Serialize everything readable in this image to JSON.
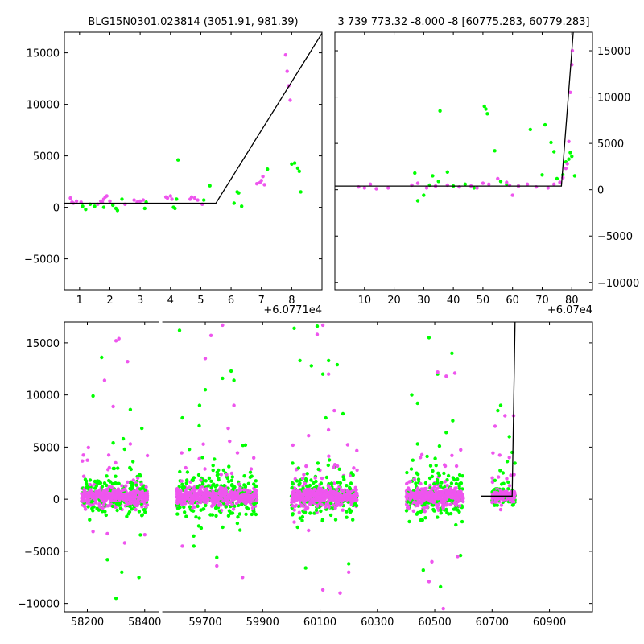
{
  "chart_data": [
    {
      "type": "scatter",
      "title": "BLG15N0301.023814 (3051.91, 981.39)",
      "xlabel": "",
      "ylabel": "",
      "xlim": [
        0.5,
        9.0
      ],
      "ylim": [
        -8000,
        17000
      ],
      "x_offset_label": "+6.0771e4",
      "xticks": [
        1,
        2,
        3,
        4,
        5,
        6,
        7,
        8
      ],
      "yticks": [
        -5000,
        0,
        5000,
        10000,
        15000
      ],
      "ytick_labels": [
        "−5000",
        "0",
        "5000",
        "10000",
        "15000"
      ],
      "yaxis_side": "left",
      "grid": false,
      "series": [
        {
          "color": "#00ff00",
          "points": [
            [
              1.1,
              100
            ],
            [
              1.2,
              -200
            ],
            [
              1.35,
              300
            ],
            [
              1.5,
              100
            ],
            [
              1.8,
              0
            ],
            [
              2.1,
              200
            ],
            [
              2.2,
              -100
            ],
            [
              2.25,
              -300
            ],
            [
              2.4,
              800
            ],
            [
              3.15,
              -100
            ],
            [
              3.2,
              500
            ],
            [
              4.1,
              0
            ],
            [
              4.15,
              -100
            ],
            [
              4.2,
              800
            ],
            [
              4.25,
              4600
            ],
            [
              5.1,
              700
            ],
            [
              5.3,
              2100
            ],
            [
              6.1,
              400
            ],
            [
              6.2,
              1500
            ],
            [
              6.25,
              1400
            ],
            [
              6.35,
              100
            ],
            [
              7.2,
              3700
            ],
            [
              8.0,
              4200
            ],
            [
              8.1,
              4300
            ],
            [
              8.2,
              3800
            ],
            [
              8.25,
              3500
            ],
            [
              8.3,
              1500
            ]
          ]
        },
        {
          "color": "#ee55ee",
          "points": [
            [
              0.7,
              900
            ],
            [
              0.75,
              500
            ],
            [
              0.8,
              400
            ],
            [
              0.9,
              600
            ],
            [
              1.05,
              500
            ],
            [
              1.6,
              300
            ],
            [
              1.7,
              600
            ],
            [
              1.75,
              500
            ],
            [
              1.8,
              800
            ],
            [
              1.85,
              1000
            ],
            [
              1.9,
              1100
            ],
            [
              2.0,
              600
            ],
            [
              2.5,
              300
            ],
            [
              2.8,
              700
            ],
            [
              2.9,
              500
            ],
            [
              3.0,
              600
            ],
            [
              3.1,
              700
            ],
            [
              3.85,
              1000
            ],
            [
              3.9,
              900
            ],
            [
              4.0,
              1100
            ],
            [
              4.05,
              800
            ],
            [
              4.65,
              800
            ],
            [
              4.7,
              1000
            ],
            [
              4.8,
              900
            ],
            [
              4.9,
              700
            ],
            [
              5.05,
              300
            ],
            [
              6.85,
              2300
            ],
            [
              6.95,
              2400
            ],
            [
              7.0,
              2600
            ],
            [
              7.05,
              3000
            ],
            [
              7.1,
              2200
            ],
            [
              7.8,
              14800
            ],
            [
              7.85,
              13200
            ],
            [
              7.9,
              11800
            ],
            [
              7.95,
              10400
            ]
          ]
        }
      ],
      "model_line": [
        [
          0.5,
          400
        ],
        [
          5.5,
          400
        ],
        [
          9.0,
          16900
        ]
      ]
    },
    {
      "type": "scatter",
      "title": "3 739 773.32 -8.000 -8 [60775.283, 60779.283]",
      "xlabel": "",
      "ylabel": "",
      "xlim": [
        0,
        87
      ],
      "ylim": [
        -10800,
        17000
      ],
      "x_offset_label": "+6.07e4",
      "xticks": [
        10,
        20,
        30,
        40,
        50,
        60,
        70,
        80
      ],
      "yticks": [
        -10000,
        -5000,
        0,
        5000,
        10000,
        15000
      ],
      "ytick_labels": [
        "−10000",
        "−5000",
        "0",
        "5000",
        "10000",
        "15000"
      ],
      "yaxis_side": "right",
      "grid": false,
      "series": [
        {
          "color": "#00ff00",
          "points": [
            [
              27,
              1800
            ],
            [
              28,
              -1200
            ],
            [
              30,
              -600
            ],
            [
              32,
              500
            ],
            [
              33,
              1500
            ],
            [
              35,
              900
            ],
            [
              35.5,
              8500
            ],
            [
              38,
              1900
            ],
            [
              40,
              400
            ],
            [
              44,
              600
            ],
            [
              47,
              200
            ],
            [
              50.5,
              9000
            ],
            [
              51,
              8700
            ],
            [
              51.5,
              8200
            ],
            [
              54,
              4200
            ],
            [
              56,
              900
            ],
            [
              58,
              600
            ],
            [
              62,
              400
            ],
            [
              66,
              6500
            ],
            [
              70,
              1600
            ],
            [
              71,
              7000
            ],
            [
              73,
              5100
            ],
            [
              74,
              4100
            ],
            [
              75,
              1200
            ],
            [
              77,
              1600
            ],
            [
              78,
              3000
            ],
            [
              79,
              3300
            ],
            [
              79.5,
              4000
            ],
            [
              80,
              3600
            ],
            [
              81,
              1500
            ]
          ]
        },
        {
          "color": "#ee55ee",
          "points": [
            [
              8,
              300
            ],
            [
              10,
              200
            ],
            [
              12,
              600
            ],
            [
              14,
              100
            ],
            [
              18,
              200
            ],
            [
              26,
              500
            ],
            [
              28,
              700
            ],
            [
              31,
              200
            ],
            [
              34,
              400
            ],
            [
              38,
              500
            ],
            [
              42,
              300
            ],
            [
              46,
              400
            ],
            [
              48,
              200
            ],
            [
              50,
              700
            ],
            [
              52,
              600
            ],
            [
              55,
              1200
            ],
            [
              58,
              800
            ],
            [
              59,
              500
            ],
            [
              60,
              -600
            ],
            [
              62,
              400
            ],
            [
              65,
              600
            ],
            [
              68,
              300
            ],
            [
              72,
              200
            ],
            [
              74,
              600
            ],
            [
              76,
              800
            ],
            [
              77,
              1300
            ],
            [
              78,
              2300
            ],
            [
              78.5,
              2800
            ],
            [
              79,
              5200
            ],
            [
              79.5,
              10500
            ],
            [
              80,
              13500
            ],
            [
              80.2,
              15000
            ]
          ]
        }
      ],
      "model_line": [
        [
          0,
          400
        ],
        [
          76.5,
          400
        ],
        [
          80.5,
          17000
        ]
      ]
    },
    {
      "type": "scatter",
      "title": "",
      "xlabel": "",
      "ylabel": "",
      "xlim": [
        58120,
        61050
      ],
      "ylim": [
        -10800,
        17000
      ],
      "x_break": [
        58450,
        59550
      ],
      "xticks": [
        58200,
        58400,
        59700,
        59900,
        60100,
        60300,
        60500,
        60700,
        60900
      ],
      "yticks": [
        -10000,
        -5000,
        0,
        5000,
        10000,
        15000
      ],
      "ytick_labels": [
        "−10000",
        "−5000",
        "0",
        "5000",
        "10000",
        "15000"
      ],
      "yaxis_side": "left",
      "grid": false,
      "seasons": [
        {
          "x_range": [
            58180,
            58410
          ],
          "core_spread": 650,
          "outliers_green": [
            [
              58220,
              9900
            ],
            [
              58250,
              13600
            ],
            [
              58290,
              5400
            ],
            [
              58300,
              -9500
            ],
            [
              58320,
              -7000
            ],
            [
              58350,
              8600
            ],
            [
              58380,
              -7500
            ],
            [
              58390,
              6800
            ],
            [
              58270,
              -5800
            ],
            [
              58330,
              4800
            ]
          ],
          "outliers_magenta": [
            [
              58260,
              11400
            ],
            [
              58300,
              15200
            ],
            [
              58310,
              15400
            ],
            [
              58340,
              13200
            ],
            [
              58270,
              -3300
            ],
            [
              58330,
              -4200
            ],
            [
              58220,
              -3100
            ],
            [
              58400,
              -3400
            ],
            [
              58290,
              8900
            ],
            [
              58350,
              5300
            ]
          ]
        },
        {
          "x_range": [
            59600,
            59880
          ],
          "core_spread": 700,
          "outliers_green": [
            [
              59610,
              16200
            ],
            [
              59620,
              7800
            ],
            [
              59680,
              9000
            ],
            [
              59700,
              10500
            ],
            [
              59760,
              11600
            ],
            [
              59790,
              12300
            ],
            [
              59800,
              11400
            ],
            [
              59660,
              -4500
            ],
            [
              59740,
              -5600
            ],
            [
              59840,
              5200
            ],
            [
              59690,
              4000
            ]
          ],
          "outliers_magenta": [
            [
              59700,
              13500
            ],
            [
              59720,
              15700
            ],
            [
              59760,
              16700
            ],
            [
              59800,
              9000
            ],
            [
              59830,
              -7500
            ],
            [
              59740,
              -6400
            ],
            [
              59620,
              -4500
            ],
            [
              59860,
              2900
            ],
            [
              59780,
              6800
            ]
          ]
        },
        {
          "x_range": [
            60000,
            60230
          ],
          "core_spread": 700,
          "outliers_green": [
            [
              60010,
              16400
            ],
            [
              60030,
              13300
            ],
            [
              60070,
              12800
            ],
            [
              60090,
              16600
            ],
            [
              60110,
              12000
            ],
            [
              60130,
              13300
            ],
            [
              60160,
              12900
            ],
            [
              60200,
              -6200
            ],
            [
              60050,
              -6600
            ],
            [
              60180,
              8200
            ],
            [
              60120,
              7800
            ]
          ],
          "outliers_magenta": [
            [
              60010,
              -2200
            ],
            [
              60060,
              -3000
            ],
            [
              60090,
              15800
            ],
            [
              60110,
              16700
            ],
            [
              60130,
              12000
            ],
            [
              60170,
              -9000
            ],
            [
              60110,
              -8700
            ],
            [
              60200,
              -7000
            ],
            [
              60150,
              8500
            ],
            [
              60060,
              6100
            ]
          ]
        },
        {
          "x_range": [
            60400,
            60600
          ],
          "core_spread": 700,
          "outliers_green": [
            [
              60420,
              10000
            ],
            [
              60440,
              9200
            ],
            [
              60460,
              -6800
            ],
            [
              60480,
              15500
            ],
            [
              60510,
              12000
            ],
            [
              60560,
              14000
            ],
            [
              60590,
              -5400
            ],
            [
              60520,
              -8400
            ],
            [
              60440,
              5300
            ],
            [
              60540,
              6400
            ]
          ],
          "outliers_magenta": [
            [
              60490,
              -6000
            ],
            [
              60510,
              12200
            ],
            [
              60540,
              11800
            ],
            [
              60570,
              12100
            ],
            [
              60530,
              -10500
            ],
            [
              60480,
              -7900
            ],
            [
              60580,
              -5500
            ],
            [
              60450,
              4000
            ],
            [
              60560,
              4200
            ]
          ]
        },
        {
          "x_range": [
            60700,
            60780
          ],
          "core_spread": 400,
          "outliers_green": [
            [
              60720,
              8500
            ],
            [
              60730,
              9000
            ],
            [
              60760,
              6000
            ],
            [
              60770,
              4500
            ],
            [
              60710,
              1800
            ],
            [
              60740,
              1500
            ]
          ],
          "outliers_magenta": [
            [
              60730,
              -1000
            ],
            [
              60700,
              -300
            ],
            [
              60745,
              8000
            ],
            [
              60760,
              4000
            ],
            [
              60775,
              8000
            ]
          ]
        }
      ],
      "model_line": [
        [
          60660,
          300
        ],
        [
          60770,
          300
        ],
        [
          60780,
          17000
        ]
      ]
    }
  ]
}
